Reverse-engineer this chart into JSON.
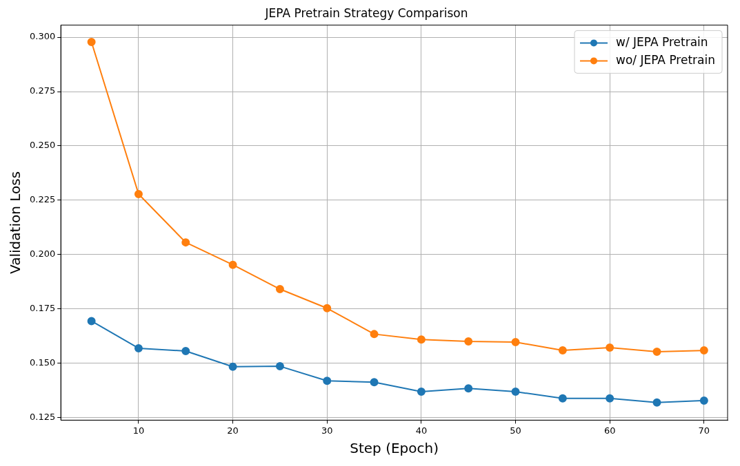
{
  "chart_data": {
    "type": "line",
    "title": "JEPA Pretrain Strategy Comparison",
    "xlabel": "Step (Epoch)",
    "ylabel": "Validation Loss",
    "x": [
      5,
      10,
      15,
      20,
      25,
      30,
      35,
      40,
      45,
      50,
      55,
      60,
      65,
      70
    ],
    "series": [
      {
        "name": "w/ JEPA Pretrain",
        "color": "#1f77b4",
        "values": [
          0.1694,
          0.1569,
          0.1556,
          0.1484,
          0.1486,
          0.1419,
          0.1413,
          0.1369,
          0.1384,
          0.1369,
          0.1338,
          0.1338,
          0.1319,
          0.1328
        ]
      },
      {
        "name": "wo/ JEPA Pretrain",
        "color": "#ff7f0e",
        "values": [
          0.2978,
          0.2278,
          0.2056,
          0.1953,
          0.1841,
          0.1753,
          0.1634,
          0.1609,
          0.16,
          0.1597,
          0.1559,
          0.1572,
          0.1553,
          0.1559
        ]
      }
    ],
    "xlim": [
      1.75,
      72.5
    ],
    "xticks": [
      10,
      20,
      30,
      40,
      50,
      60,
      70
    ],
    "ylim": [
      0.1238,
      0.3056
    ],
    "yticks": [
      {
        "value": 0.125,
        "label": "0.125"
      },
      {
        "value": 0.15,
        "label": "0.150"
      },
      {
        "value": 0.175,
        "label": "0.175"
      },
      {
        "value": 0.2,
        "label": "0.200"
      },
      {
        "value": 0.225,
        "label": "0.225"
      },
      {
        "value": 0.25,
        "label": "0.250"
      },
      {
        "value": 0.275,
        "label": "0.275"
      },
      {
        "value": 0.3,
        "label": "0.300"
      }
    ],
    "grid": true,
    "legend": "top right",
    "marker": "circle",
    "line_style": "solid"
  }
}
